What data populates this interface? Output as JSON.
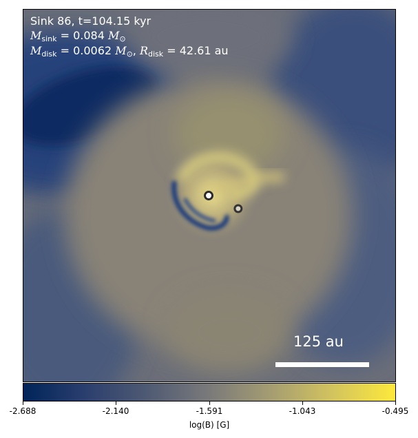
{
  "info": {
    "line1": "Sink 86, t=104.15 kyr",
    "msink_symbol": "M",
    "msink_sub": "sink",
    "msink_value": " = 0.084 ",
    "mdisk_symbol": "M",
    "mdisk_sub": "disk",
    "mdisk_value": " = 0.0062 ",
    "sun_symbol": "M",
    "sun_sub": "⊙",
    "rdisk_symbol": "R",
    "rdisk_sub": "disk",
    "rdisk_value": " = 42.61 au",
    "separator": ", "
  },
  "scale_bar": {
    "label": "125 au"
  },
  "colorbar": {
    "label": "log(B) [G]",
    "ticks": [
      "-2.688",
      "-2.140",
      "-1.591",
      "-1.043",
      "-0.495"
    ],
    "colors": [
      "#00245a",
      "#2b3f6e",
      "#4f5a73",
      "#7a7a7a",
      "#a59d72",
      "#d3c45e",
      "#fde93b"
    ]
  }
}
